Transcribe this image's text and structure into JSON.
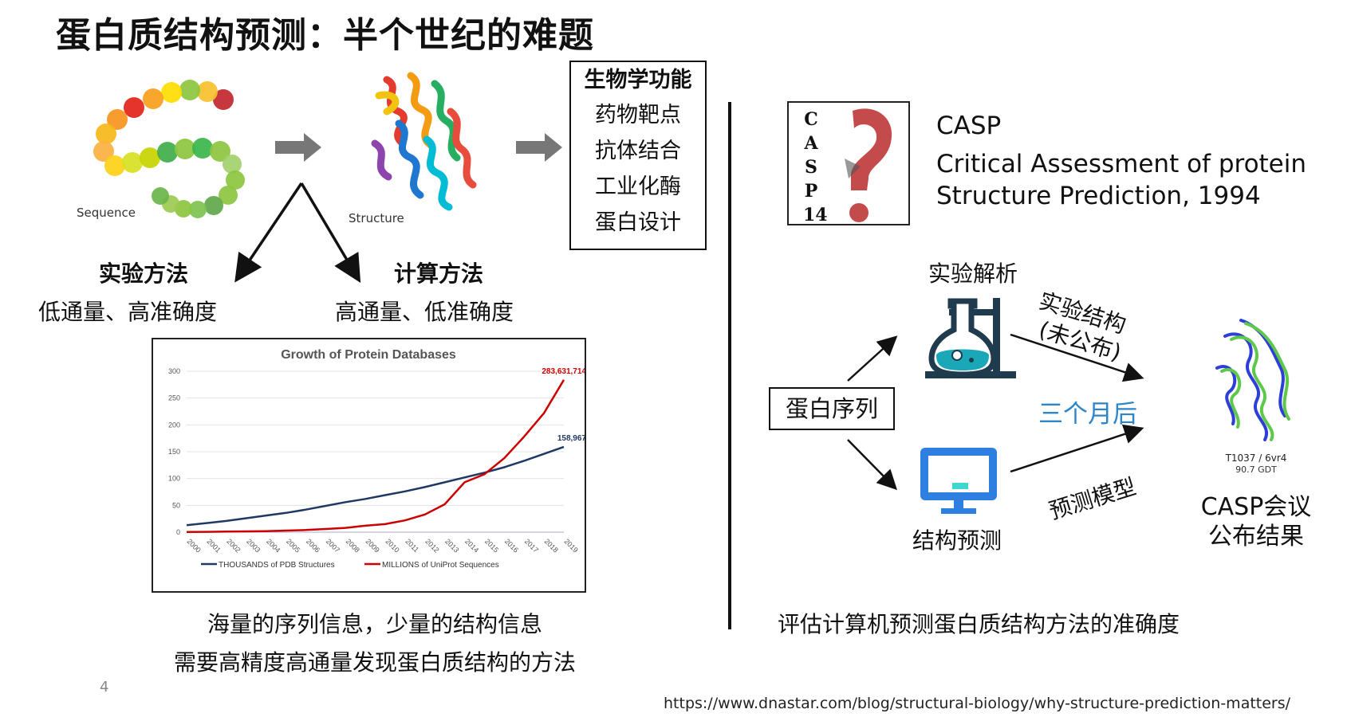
{
  "title": "蛋白质结构预测：半个世纪的难题",
  "labels": {
    "sequence": "Sequence",
    "structure": "Structure"
  },
  "function_box": {
    "heading": "生物学功能",
    "items": [
      "药物靶点",
      "抗体结合",
      "工业化酶",
      "蛋白设计"
    ]
  },
  "methods": {
    "experimental": {
      "title": "实验方法",
      "desc": "低通量、高准确度"
    },
    "computational": {
      "title": "计算方法",
      "desc": "高通量、低准确度"
    }
  },
  "chart_caption": [
    "海量的序列信息，少量的结构信息",
    "需要高精度高通量发现蛋白质结构的方法"
  ],
  "page_number": "4",
  "source_url": "https://www.dnastar.com/blog/structural-biology/why-structure-prediction-matters/",
  "casp": {
    "logo_letters": [
      "C",
      "A",
      "S",
      "P",
      "14"
    ],
    "name": "CASP",
    "full_line1": "Critical Assessment of protein",
    "full_line2": "Structure Prediction, 1994"
  },
  "flow": {
    "protein_sequence": "蛋白序列",
    "experimental_analysis": "实验解析",
    "structure_prediction": "结构预测",
    "exp_structure_line1": "实验结构",
    "exp_structure_line2": "(未公布)",
    "three_months": "三个月后",
    "prediction_model": "预测模型",
    "result_id": "T1037 / 6vr4",
    "result_gdt": "90.7 GDT",
    "casp_announce_line1": "CASP会议",
    "casp_announce_line2": "公布结果",
    "bottom_caption": "评估计算机预测蛋白质结构方法的准确度"
  },
  "colors": {
    "arrow_gray": "#777777",
    "blue_text": "#2d86c9",
    "flask_teal": "#1aa7b8",
    "flask_dark": "#1f3b4d",
    "monitor_blue": "#2f7fe0",
    "series_pdb": "#1f3864",
    "series_uniprot": "#cc0000"
  },
  "chart_data": {
    "type": "line",
    "title": "Growth of Protein Databases",
    "x": [
      "2000",
      "2001",
      "2002",
      "2003",
      "2004",
      "2005",
      "2006",
      "2007",
      "2008",
      "2009",
      "2010",
      "2011",
      "2012",
      "2013",
      "2014",
      "2015",
      "2016",
      "2017",
      "2018",
      "2019"
    ],
    "ylim": [
      0,
      300
    ],
    "yticks": [
      0,
      50,
      100,
      150,
      200,
      250,
      300
    ],
    "grid": true,
    "legend_position": "bottom",
    "series": [
      {
        "name": "THOUSANDS of PDB Structures",
        "color": "#1f3864",
        "values": [
          13,
          17,
          21,
          26,
          31,
          36,
          42,
          49,
          56,
          62,
          69,
          76,
          84,
          93,
          102,
          111,
          121,
          133,
          146,
          159
        ],
        "end_label": "158,967"
      },
      {
        "name": "MILLIONS of UniProt Sequences",
        "color": "#cc0000",
        "values": [
          0.5,
          0.6,
          1,
          1.5,
          2,
          3,
          4,
          6,
          8,
          12,
          15,
          22,
          33,
          52,
          93,
          108,
          138,
          178,
          222,
          284
        ],
        "end_label": "283,631,714"
      }
    ]
  }
}
